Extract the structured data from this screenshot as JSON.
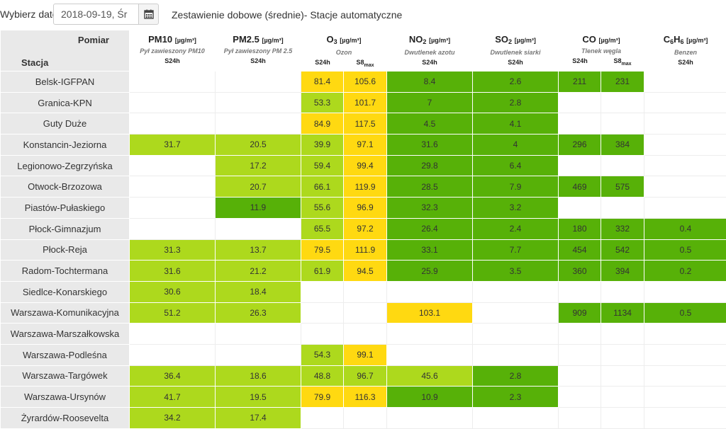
{
  "header": {
    "date_label": "Wybierz datę:",
    "date_value": "2018-09-19, Śr",
    "calendar_icon": "calendar-icon",
    "title": "Zestawienie dobowe (średnie)- Stacje automatyczne"
  },
  "table": {
    "corner_measure_label": "Pomiar",
    "corner_station_label": "Stacja",
    "columns": [
      {
        "id": "pm10",
        "name": "PM10",
        "unit": "[µg/m³]",
        "desc": "Pył zawieszony PM10",
        "sub": [
          "S24h"
        ]
      },
      {
        "id": "pm25",
        "name": "PM2.5",
        "unit": "[µg/m³]",
        "desc": "Pył zawieszony PM 2.5",
        "sub": [
          "S24h"
        ]
      },
      {
        "id": "o3",
        "name": "O",
        "name_sub": "3",
        "unit": "[µg/m³]",
        "desc": "Ozon",
        "sub": [
          "S24h",
          "S8",
          "max"
        ]
      },
      {
        "id": "no2",
        "name": "NO",
        "name_sub": "2",
        "unit": "[µg/m³]",
        "desc": "Dwutlenek azotu",
        "sub": [
          "S24h"
        ]
      },
      {
        "id": "so2",
        "name": "SO",
        "name_sub": "2",
        "unit": "[µg/m³]",
        "desc": "Dwutlenek siarki",
        "sub": [
          "S24h"
        ]
      },
      {
        "id": "co",
        "name": "CO",
        "unit": "[µg/m³]",
        "desc": "Tlenek węgla",
        "sub": [
          "S24h",
          "S8",
          "max"
        ]
      },
      {
        "id": "c6h6",
        "name": "C",
        "name_sub": "6",
        "name2": "H",
        "name2_sub": "6",
        "unit": "[µg/m³]",
        "desc": "Benzen",
        "sub": [
          "S24h"
        ]
      }
    ],
    "colors": {
      "lime": "#add91d",
      "green": "#57b108",
      "yellow": "#ffd911"
    },
    "rows": [
      {
        "station": "Belsk-IGFPAN",
        "cells": [
          [
            "",
            ""
          ],
          [
            "",
            ""
          ],
          [
            "81.4",
            "yellow"
          ],
          [
            "105.6",
            "yellow"
          ],
          [
            "8.4",
            "green"
          ],
          [
            "2.6",
            "green"
          ],
          [
            "211",
            "green"
          ],
          [
            "231",
            "green"
          ],
          [
            "",
            ""
          ]
        ]
      },
      {
        "station": "Granica-KPN",
        "cells": [
          [
            "",
            ""
          ],
          [
            "",
            ""
          ],
          [
            "53.3",
            "lime"
          ],
          [
            "101.7",
            "yellow"
          ],
          [
            "7",
            "green"
          ],
          [
            "2.8",
            "green"
          ],
          [
            "",
            ""
          ],
          [
            "",
            ""
          ],
          [
            "",
            ""
          ]
        ]
      },
      {
        "station": "Guty Duże",
        "cells": [
          [
            "",
            ""
          ],
          [
            "",
            ""
          ],
          [
            "84.9",
            "yellow"
          ],
          [
            "117.5",
            "yellow"
          ],
          [
            "4.5",
            "green"
          ],
          [
            "4.1",
            "green"
          ],
          [
            "",
            ""
          ],
          [
            "",
            ""
          ],
          [
            "",
            ""
          ]
        ]
      },
      {
        "station": "Konstancin-Jeziorna",
        "cells": [
          [
            "31.7",
            "lime"
          ],
          [
            "20.5",
            "lime"
          ],
          [
            "39.9",
            "lime"
          ],
          [
            "97.1",
            "yellow"
          ],
          [
            "31.6",
            "green"
          ],
          [
            "4",
            "green"
          ],
          [
            "296",
            "green"
          ],
          [
            "384",
            "green"
          ],
          [
            "",
            ""
          ]
        ]
      },
      {
        "station": "Legionowo-Zegrzyńska",
        "cells": [
          [
            "",
            ""
          ],
          [
            "17.2",
            "lime"
          ],
          [
            "59.4",
            "lime"
          ],
          [
            "99.4",
            "yellow"
          ],
          [
            "29.8",
            "green"
          ],
          [
            "6.4",
            "green"
          ],
          [
            "",
            ""
          ],
          [
            "",
            ""
          ],
          [
            "",
            ""
          ]
        ]
      },
      {
        "station": "Otwock-Brzozowa",
        "cells": [
          [
            "",
            ""
          ],
          [
            "20.7",
            "lime"
          ],
          [
            "66.1",
            "lime"
          ],
          [
            "119.9",
            "yellow"
          ],
          [
            "28.5",
            "green"
          ],
          [
            "7.9",
            "green"
          ],
          [
            "469",
            "green"
          ],
          [
            "575",
            "green"
          ],
          [
            "",
            ""
          ]
        ]
      },
      {
        "station": "Piastów-Pułaskiego",
        "cells": [
          [
            "",
            ""
          ],
          [
            "11.9",
            "green"
          ],
          [
            "55.6",
            "lime"
          ],
          [
            "96.9",
            "yellow"
          ],
          [
            "32.3",
            "green"
          ],
          [
            "3.2",
            "green"
          ],
          [
            "",
            ""
          ],
          [
            "",
            ""
          ],
          [
            "",
            ""
          ]
        ]
      },
      {
        "station": "Płock-Gimnazjum",
        "cells": [
          [
            "",
            ""
          ],
          [
            "",
            ""
          ],
          [
            "65.5",
            "lime"
          ],
          [
            "97.2",
            "yellow"
          ],
          [
            "26.4",
            "green"
          ],
          [
            "2.4",
            "green"
          ],
          [
            "180",
            "green"
          ],
          [
            "332",
            "green"
          ],
          [
            "0.4",
            "green"
          ]
        ]
      },
      {
        "station": "Płock-Reja",
        "cells": [
          [
            "31.3",
            "lime"
          ],
          [
            "13.7",
            "lime"
          ],
          [
            "79.5",
            "yellow"
          ],
          [
            "111.9",
            "yellow"
          ],
          [
            "33.1",
            "green"
          ],
          [
            "7.7",
            "green"
          ],
          [
            "454",
            "green"
          ],
          [
            "542",
            "green"
          ],
          [
            "0.5",
            "green"
          ]
        ]
      },
      {
        "station": "Radom-Tochtermana",
        "cells": [
          [
            "31.6",
            "lime"
          ],
          [
            "21.2",
            "lime"
          ],
          [
            "61.9",
            "lime"
          ],
          [
            "94.5",
            "yellow"
          ],
          [
            "25.9",
            "green"
          ],
          [
            "3.5",
            "green"
          ],
          [
            "360",
            "green"
          ],
          [
            "394",
            "green"
          ],
          [
            "0.2",
            "green"
          ]
        ]
      },
      {
        "station": "Siedlce-Konarskiego",
        "cells": [
          [
            "30.6",
            "lime"
          ],
          [
            "18.4",
            "lime"
          ],
          [
            "",
            ""
          ],
          [
            "",
            ""
          ],
          [
            "",
            ""
          ],
          [
            "",
            ""
          ],
          [
            "",
            ""
          ],
          [
            "",
            ""
          ],
          [
            "",
            ""
          ]
        ]
      },
      {
        "station": "Warszawa-Komunikacyjna",
        "cells": [
          [
            "51.2",
            "lime"
          ],
          [
            "26.3",
            "lime"
          ],
          [
            "",
            ""
          ],
          [
            "",
            ""
          ],
          [
            "103.1",
            "yellow"
          ],
          [
            "",
            ""
          ],
          [
            "909",
            "green"
          ],
          [
            "1134",
            "green"
          ],
          [
            "0.5",
            "green"
          ]
        ]
      },
      {
        "station": "Warszawa-Marszałkowska",
        "cells": [
          [
            "",
            ""
          ],
          [
            "",
            ""
          ],
          [
            "",
            ""
          ],
          [
            "",
            ""
          ],
          [
            "",
            ""
          ],
          [
            "",
            ""
          ],
          [
            "",
            ""
          ],
          [
            "",
            ""
          ],
          [
            "",
            ""
          ]
        ]
      },
      {
        "station": "Warszawa-Podleśna",
        "cells": [
          [
            "",
            ""
          ],
          [
            "",
            ""
          ],
          [
            "54.3",
            "lime"
          ],
          [
            "99.1",
            "yellow"
          ],
          [
            "",
            ""
          ],
          [
            "",
            ""
          ],
          [
            "",
            ""
          ],
          [
            "",
            ""
          ],
          [
            "",
            ""
          ]
        ]
      },
      {
        "station": "Warszawa-Targówek",
        "cells": [
          [
            "36.4",
            "lime"
          ],
          [
            "18.6",
            "lime"
          ],
          [
            "48.8",
            "lime"
          ],
          [
            "96.7",
            "lime"
          ],
          [
            "45.6",
            "lime"
          ],
          [
            "2.8",
            "green"
          ],
          [
            "",
            ""
          ],
          [
            "",
            ""
          ],
          [
            "",
            ""
          ]
        ]
      },
      {
        "station": "Warszawa-Ursynów",
        "cells": [
          [
            "41.7",
            "lime"
          ],
          [
            "19.5",
            "lime"
          ],
          [
            "79.9",
            "yellow"
          ],
          [
            "116.3",
            "yellow"
          ],
          [
            "10.9",
            "green"
          ],
          [
            "2.3",
            "green"
          ],
          [
            "",
            ""
          ],
          [
            "",
            ""
          ],
          [
            "",
            ""
          ]
        ]
      },
      {
        "station": "Żyrardów-Roosevelta",
        "cells": [
          [
            "34.2",
            "lime"
          ],
          [
            "17.4",
            "lime"
          ],
          [
            "",
            ""
          ],
          [
            "",
            ""
          ],
          [
            "",
            ""
          ],
          [
            "",
            ""
          ],
          [
            "",
            ""
          ],
          [
            "",
            ""
          ],
          [
            "",
            ""
          ]
        ]
      }
    ]
  }
}
